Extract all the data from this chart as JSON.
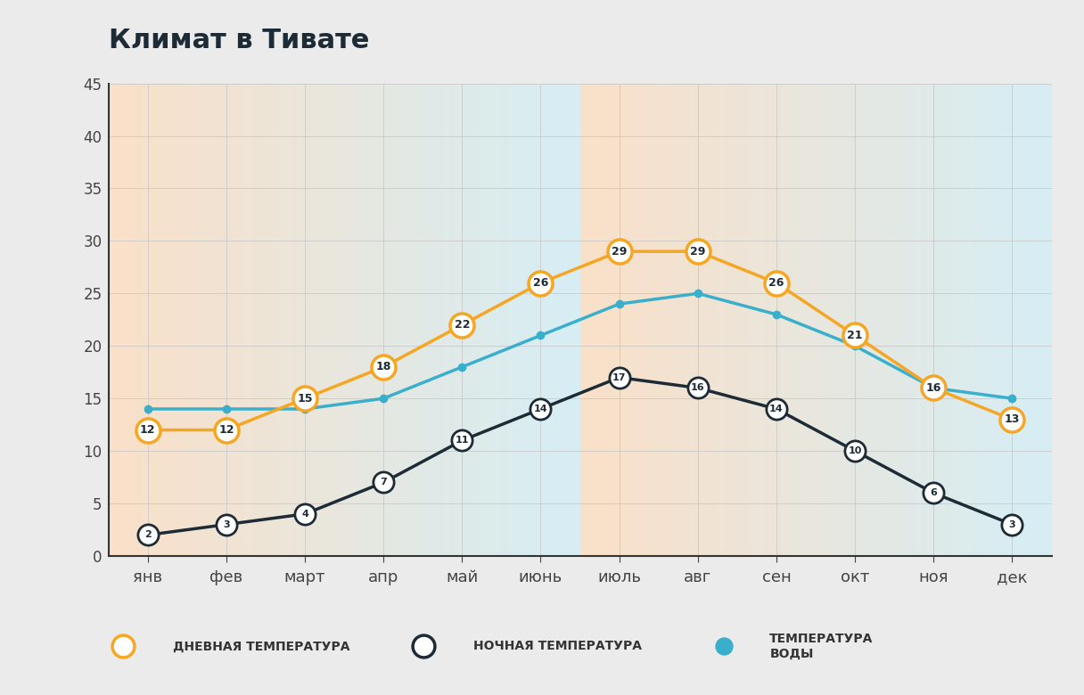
{
  "title": "Климат в Тивате",
  "months": [
    "янв",
    "фев",
    "март",
    "апр",
    "май",
    "июнь",
    "июль",
    "авг",
    "сен",
    "окт",
    "ноя",
    "дек"
  ],
  "day_temp": [
    12,
    12,
    15,
    18,
    22,
    26,
    29,
    29,
    26,
    21,
    16,
    13
  ],
  "night_temp": [
    2,
    3,
    4,
    7,
    11,
    14,
    17,
    16,
    14,
    10,
    6,
    3
  ],
  "water_temp": [
    14,
    14,
    14,
    15,
    18,
    21,
    24,
    25,
    23,
    20,
    16,
    15
  ],
  "day_color": "#F5A623",
  "night_color": "#1C2B35",
  "water_color": "#3AAFCC",
  "ylim": [
    0,
    45
  ],
  "yticks": [
    0,
    5,
    10,
    15,
    20,
    25,
    30,
    35,
    40,
    45
  ],
  "background_outer": "#EBEBEB",
  "bg_top_color": "#FAE0C8",
  "bg_bottom_color": "#D6EEF5",
  "grid_color": "#C8C8C8",
  "legend_day": "ДНЕВНАЯ ТЕМПЕРАТУРА",
  "legend_night": "НОЧНАЯ ТЕМПЕРАТУРА",
  "legend_water": "ТЕМПЕРАТУРА\nВОДЫ"
}
